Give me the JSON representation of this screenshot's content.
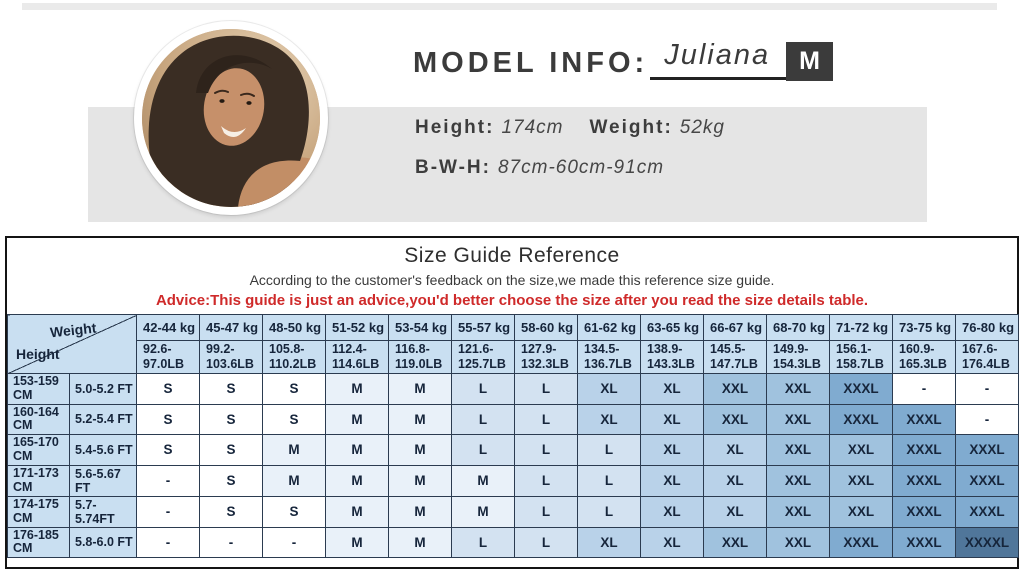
{
  "model_info": {
    "heading": "MODEL INFO:",
    "name": "Juliana",
    "size_badge": "M",
    "height_label": "Height:",
    "height_value": "174cm",
    "weight_label": "Weight:",
    "weight_value": "52kg",
    "bwh_label": "B-W-H:",
    "bwh_value": "87cm-60cm-91cm"
  },
  "size_guide": {
    "title": "Size Guide Reference",
    "subtitle": "According to the customer's feedback on the size,we made this reference size guide.",
    "advice": "Advice:This guide is just an advice,you'd better choose the size after you read the size details table.",
    "corner": {
      "weight_label": "Weight",
      "height_label": "Height"
    },
    "weight_columns": [
      {
        "kg": "42-44 kg",
        "lb_top": "92.6-",
        "lb_bottom": "97.0LB"
      },
      {
        "kg": "45-47 kg",
        "lb_top": "99.2-",
        "lb_bottom": "103.6LB"
      },
      {
        "kg": "48-50 kg",
        "lb_top": "105.8-",
        "lb_bottom": "110.2LB"
      },
      {
        "kg": "51-52 kg",
        "lb_top": "112.4-",
        "lb_bottom": "114.6LB"
      },
      {
        "kg": "53-54 kg",
        "lb_top": "116.8-",
        "lb_bottom": "119.0LB"
      },
      {
        "kg": "55-57 kg",
        "lb_top": "121.6-",
        "lb_bottom": "125.7LB"
      },
      {
        "kg": "58-60 kg",
        "lb_top": "127.9-",
        "lb_bottom": "132.3LB"
      },
      {
        "kg": "61-62 kg",
        "lb_top": "134.5-",
        "lb_bottom": "136.7LB"
      },
      {
        "kg": "63-65 kg",
        "lb_top": "138.9-",
        "lb_bottom": "143.3LB"
      },
      {
        "kg": "66-67 kg",
        "lb_top": "145.5-",
        "lb_bottom": "147.7LB"
      },
      {
        "kg": "68-70 kg",
        "lb_top": "149.9-",
        "lb_bottom": "154.3LB"
      },
      {
        "kg": "71-72 kg",
        "lb_top": "156.1-",
        "lb_bottom": "158.7LB"
      },
      {
        "kg": "73-75 kg",
        "lb_top": "160.9-",
        "lb_bottom": "165.3LB"
      },
      {
        "kg": "76-80 kg",
        "lb_top": "167.6-",
        "lb_bottom": "176.4LB"
      }
    ],
    "rows": [
      {
        "cm": "153-159",
        "unit": "CM",
        "ft": "5.0-5.2 FT",
        "sizes": [
          "S",
          "S",
          "S",
          "M",
          "M",
          "L",
          "L",
          "XL",
          "XL",
          "XXL",
          "XXL",
          "XXXL",
          "-",
          "-"
        ]
      },
      {
        "cm": "160-164",
        "unit": "CM",
        "ft": "5.2-5.4 FT",
        "sizes": [
          "S",
          "S",
          "S",
          "M",
          "M",
          "L",
          "L",
          "XL",
          "XL",
          "XXL",
          "XXL",
          "XXXL",
          "XXXL",
          "-"
        ]
      },
      {
        "cm": "165-170",
        "unit": "CM",
        "ft": "5.4-5.6 FT",
        "sizes": [
          "S",
          "S",
          "M",
          "M",
          "M",
          "L",
          "L",
          "L",
          "XL",
          "XL",
          "XXL",
          "XXL",
          "XXXL",
          "XXXL"
        ]
      },
      {
        "cm": "171-173",
        "unit": "CM",
        "ft": "5.6-5.67 FT",
        "sizes": [
          "-",
          "S",
          "M",
          "M",
          "M",
          "M",
          "L",
          "L",
          "XL",
          "XL",
          "XXL",
          "XXL",
          "XXXL",
          "XXXL"
        ]
      },
      {
        "cm": "174-175",
        "unit": "CM",
        "ft": "5.7-5.74FT",
        "sizes": [
          "-",
          "S",
          "S",
          "M",
          "M",
          "M",
          "L",
          "L",
          "XL",
          "XL",
          "XXL",
          "XXL",
          "XXXL",
          "XXXL"
        ]
      },
      {
        "cm": "176-185",
        "unit": "CM",
        "ft": "5.8-6.0 FT",
        "sizes": [
          "-",
          "-",
          "-",
          "M",
          "M",
          "L",
          "L",
          "XL",
          "XL",
          "XXL",
          "XXL",
          "XXXL",
          "XXXL",
          "XXXXL"
        ]
      }
    ],
    "size_colors": {
      "S": "#ffffff",
      "M": "#e9f1f9",
      "L": "#d3e2f1",
      "XL": "#b9d2e9",
      "XXL": "#a0c2de",
      "XXXL": "#80abd0",
      "XXXXL": "#50769a",
      "-": "#ffffff"
    },
    "header_bg": "#c9dff1",
    "advice_color": "#cf2a2a"
  }
}
